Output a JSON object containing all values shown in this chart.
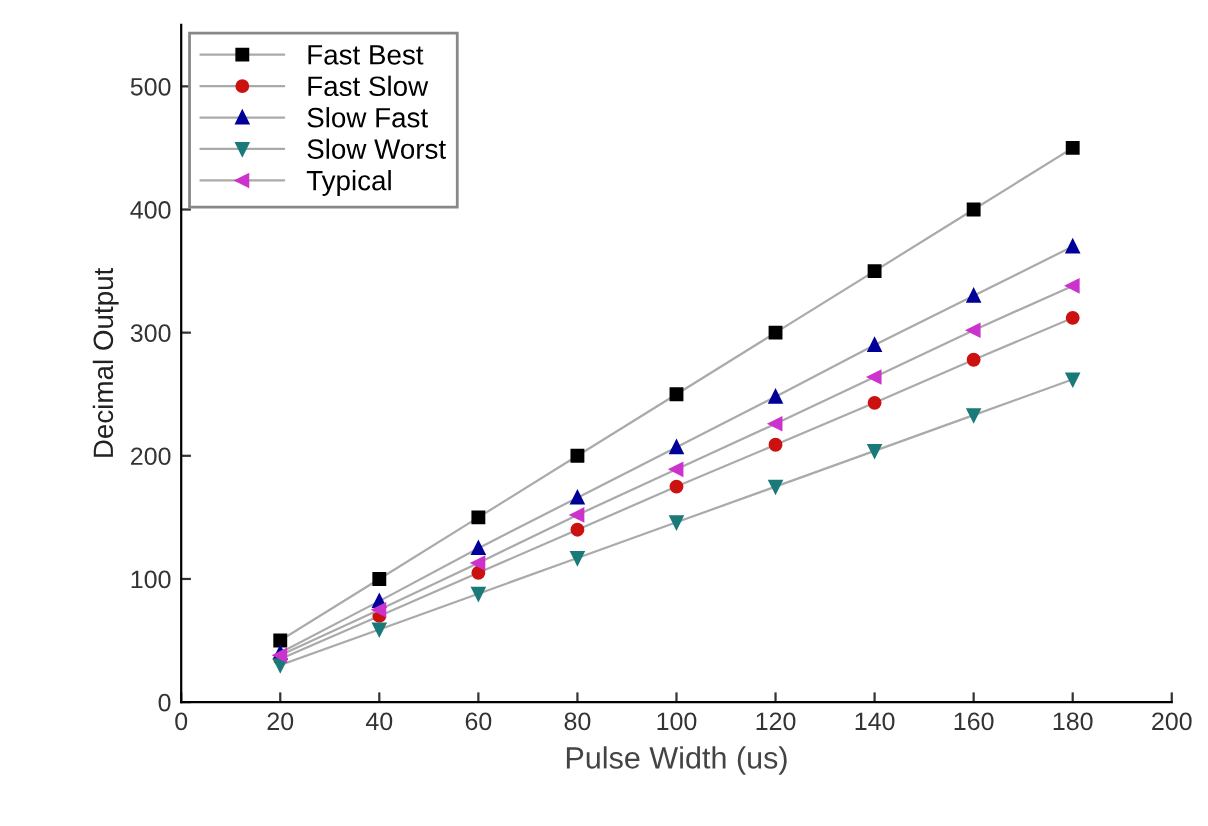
{
  "chart_data": {
    "type": "line",
    "xlabel": "Pulse Width (us)",
    "ylabel": "Decimal Output",
    "x": [
      20,
      40,
      60,
      80,
      100,
      120,
      140,
      160,
      180
    ],
    "series": [
      {
        "name": "Fast Best",
        "color": "#000000",
        "marker": "square",
        "values": [
          50,
          100,
          150,
          200,
          250,
          300,
          350,
          400,
          450
        ]
      },
      {
        "name": "Fast Slow",
        "color": "#cc1111",
        "marker": "circle",
        "values": [
          35,
          70,
          105,
          140,
          175,
          209,
          243,
          278,
          312
        ]
      },
      {
        "name": "Slow Fast",
        "color": "#000099",
        "marker": "triangle",
        "values": [
          40,
          82,
          125,
          166,
          207,
          248,
          290,
          330,
          370
        ]
      },
      {
        "name": "Slow Worst",
        "color": "#1a7a7a",
        "marker": "triangle_down",
        "values": [
          30,
          59,
          88,
          117,
          146,
          175,
          204,
          233,
          262
        ]
      },
      {
        "name": "Typical",
        "color": "#cc33cc",
        "marker": "triangle_left",
        "values": [
          38,
          75,
          113,
          152,
          189,
          226,
          264,
          302,
          338
        ]
      }
    ],
    "xlim": [
      0,
      200
    ],
    "xticks": [
      0,
      20,
      40,
      60,
      80,
      100,
      120,
      140,
      160,
      180,
      200
    ],
    "ylim": [
      0,
      550
    ],
    "yticks": [
      0,
      100,
      200,
      300,
      400,
      500
    ],
    "grid": false,
    "legend": "top left",
    "line_style": "solid"
  }
}
